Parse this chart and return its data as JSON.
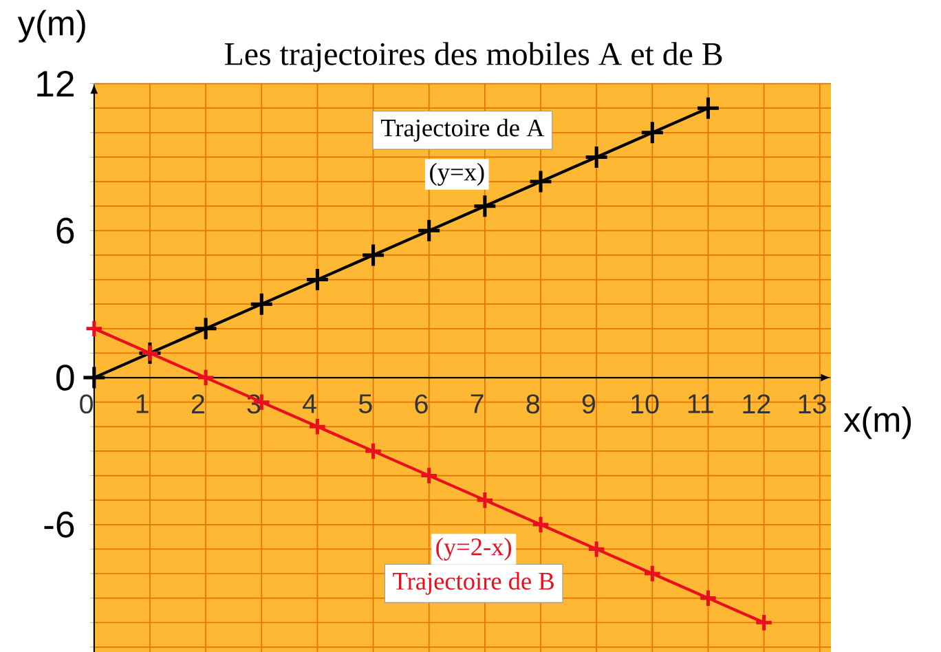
{
  "chart_data": {
    "type": "line",
    "title": "Les trajectoires des mobiles A et de B",
    "xlabel": "x(m)",
    "ylabel": "y(m)",
    "xlim": [
      0,
      13.2
    ],
    "ylim": [
      -11.2,
      12
    ],
    "xticks": [
      0,
      1,
      2,
      3,
      4,
      5,
      6,
      7,
      8,
      9,
      10,
      11,
      12,
      13
    ],
    "yticks": [
      {
        "value": -11,
        "label": null
      },
      {
        "value": -10,
        "label": null
      },
      {
        "value": -9,
        "label": null
      },
      {
        "value": -8,
        "label": null
      },
      {
        "value": -7,
        "label": null
      },
      -6,
      {
        "value": -5,
        "label": null
      },
      {
        "value": -4,
        "label": null
      },
      {
        "value": -3,
        "label": null
      },
      {
        "value": -2,
        "label": null
      },
      {
        "value": -1,
        "label": null
      },
      0,
      {
        "value": 1,
        "label": null
      },
      {
        "value": 2,
        "label": null
      },
      {
        "value": 3,
        "label": null
      },
      {
        "value": 4,
        "label": null
      },
      {
        "value": 5,
        "label": null
      },
      6,
      {
        "value": 7,
        "label": null
      },
      {
        "value": 8,
        "label": null
      },
      {
        "value": 9,
        "label": null
      },
      {
        "value": 10,
        "label": null
      },
      {
        "value": 11,
        "label": null
      },
      12
    ],
    "grid": true,
    "legend": false,
    "marker": "cross",
    "line_style": "solid",
    "series": [
      {
        "name": "Trajectoire de A",
        "color": "#000000",
        "x": [
          0,
          1,
          2,
          3,
          4,
          5,
          6,
          7,
          8,
          9,
          10,
          11
        ],
        "values": [
          0,
          1,
          2,
          3,
          4,
          5,
          6,
          7,
          8,
          9,
          10,
          11
        ]
      },
      {
        "name": "Trajectoire de B",
        "color": "#e8101e",
        "x": [
          0,
          1,
          2,
          3,
          4,
          5,
          6,
          7,
          8,
          9,
          10,
          11,
          12
        ],
        "values": [
          2,
          1,
          0,
          -1,
          -2,
          -3,
          -4,
          -5,
          -6,
          -7,
          -8,
          -9,
          -10
        ]
      }
    ],
    "annotations": [
      "(y=x)",
      "(y=2-x)"
    ]
  }
}
